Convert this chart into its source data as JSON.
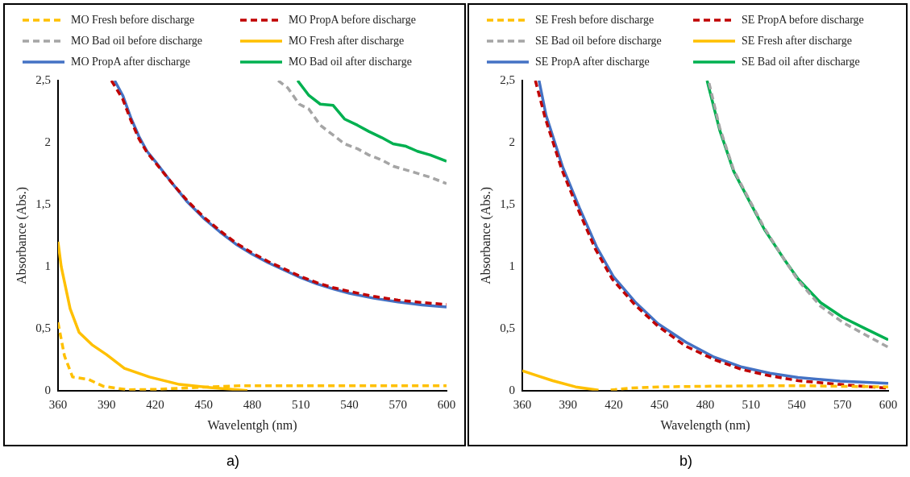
{
  "chart_data": [
    {
      "type": "line",
      "xlabel": "Wavelentgh (nm)",
      "ylabel": "Absorbance (Abs.)",
      "annotations": [
        "a)"
      ],
      "xlim": [
        360,
        600
      ],
      "xticks": [
        360,
        390,
        420,
        450,
        480,
        510,
        540,
        570,
        600
      ],
      "ylim": [
        0,
        2.5
      ],
      "yticks": [
        0,
        {
          "value": 0.5,
          "label": "0,5"
        },
        1,
        {
          "value": 1.5,
          "label": "1,5"
        },
        2,
        {
          "value": 2.5,
          "label": "2,5"
        }
      ],
      "legend": "top",
      "marker": "none",
      "series": [
        {
          "name": "MO Fresh before discharge",
          "color": "#ffc000",
          "line_style": "dashed",
          "x": [
            360,
            364,
            369,
            379,
            388,
            403,
            420,
            454,
            473,
            500,
            550,
            600
          ],
          "values": [
            0.55,
            0.28,
            0.11,
            0.09,
            0.035,
            0.007,
            0.01,
            0.03,
            0.04,
            0.04,
            0.04,
            0.04
          ]
        },
        {
          "name": "MO PropA before discharge",
          "color": "#c00000",
          "line_style": "dashed",
          "x": [
            393,
            400,
            405,
            410,
            415,
            420,
            430,
            440,
            450,
            460,
            470,
            480,
            490,
            500,
            510,
            520,
            530,
            540,
            555,
            570,
            585,
            600
          ],
          "values": [
            2.5,
            2.35,
            2.18,
            2.03,
            1.92,
            1.84,
            1.68,
            1.53,
            1.4,
            1.29,
            1.19,
            1.11,
            1.04,
            0.98,
            0.92,
            0.87,
            0.83,
            0.8,
            0.76,
            0.73,
            0.71,
            0.695
          ]
        },
        {
          "name": "MO Bad oil before discharge",
          "color": "#a5a5a5",
          "line_style": "dashed",
          "x": [
            496,
            502,
            509,
            515,
            522,
            530,
            537,
            545,
            552,
            560,
            567,
            580,
            590,
            600
          ],
          "values": [
            2.5,
            2.44,
            2.31,
            2.27,
            2.14,
            2.06,
            1.99,
            1.95,
            1.9,
            1.86,
            1.81,
            1.76,
            1.72,
            1.67
          ]
        },
        {
          "name": "MO Fresh after discharge",
          "color": "#ffc000",
          "line_style": "solid",
          "x": [
            360,
            362,
            367.5,
            373,
            381,
            390,
            401,
            416.5,
            435,
            454,
            477
          ],
          "values": [
            1.2,
            1.0,
            0.66,
            0.47,
            0.37,
            0.29,
            0.18,
            0.11,
            0.05,
            0.025,
            0
          ]
        },
        {
          "name": "MO PropA after discharge",
          "color": "#4472c4",
          "line_style": "solid",
          "x": [
            395,
            400,
            405,
            410,
            415,
            420,
            430,
            440,
            450,
            460,
            470,
            480,
            490,
            500,
            510,
            520,
            530,
            540,
            555,
            570,
            585,
            600
          ],
          "values": [
            2.5,
            2.38,
            2.2,
            2.05,
            1.93,
            1.85,
            1.68,
            1.52,
            1.39,
            1.28,
            1.18,
            1.1,
            1.03,
            0.97,
            0.91,
            0.86,
            0.82,
            0.785,
            0.745,
            0.715,
            0.69,
            0.675
          ]
        },
        {
          "name": "MO Bad oil after discharge",
          "color": "#00b050",
          "line_style": "solid",
          "x": [
            508,
            515,
            522,
            530,
            537,
            545,
            552,
            560,
            567,
            575,
            582,
            590,
            600
          ],
          "values": [
            2.5,
            2.38,
            2.31,
            2.3,
            2.19,
            2.14,
            2.09,
            2.04,
            1.99,
            1.97,
            1.93,
            1.9,
            1.85
          ]
        }
      ]
    },
    {
      "type": "line",
      "xlabel": "Wavelength (nm)",
      "ylabel": "Absorbance (Abs.)",
      "annotations": [
        "b)"
      ],
      "xlim": [
        360,
        600
      ],
      "xticks": [
        360,
        390,
        420,
        450,
        480,
        510,
        540,
        570,
        600
      ],
      "ylim": [
        0,
        2.5
      ],
      "yticks": [
        0,
        {
          "value": 0.5,
          "label": "0,5"
        },
        1,
        {
          "value": 1.5,
          "label": "1,5"
        },
        2,
        {
          "value": 2.5,
          "label": "2,5"
        }
      ],
      "legend": "top",
      "marker": "none",
      "series": [
        {
          "name": "SE Fresh before discharge",
          "color": "#ffc000",
          "line_style": "dashed",
          "x": [
            418,
            430,
            450,
            480,
            510,
            540,
            570,
            600
          ],
          "values": [
            0.005,
            0.02,
            0.03,
            0.035,
            0.038,
            0.04,
            0.035,
            0.03
          ]
        },
        {
          "name": "SE PropA before discharge",
          "color": "#c00000",
          "line_style": "dashed",
          "x": [
            368.6,
            375,
            386,
            397,
            408,
            419,
            434,
            449,
            467,
            486,
            504,
            522,
            541,
            568,
            600
          ],
          "values": [
            2.5,
            2.2,
            1.78,
            1.45,
            1.14,
            0.9,
            0.69,
            0.52,
            0.36,
            0.25,
            0.17,
            0.12,
            0.08,
            0.05,
            0.02
          ]
        },
        {
          "name": "SE Bad oil before discharge",
          "color": "#a5a5a5",
          "line_style": "dashed",
          "x": [
            482.5,
            489.5,
            498.6,
            509.7,
            518.8,
            531.7,
            540.9,
            555.6,
            570.2,
            585,
            600
          ],
          "values": [
            2.48,
            2.12,
            1.78,
            1.52,
            1.31,
            1.06,
            0.89,
            0.68,
            0.55,
            0.45,
            0.35
          ]
        },
        {
          "name": "SE Fresh after discharge",
          "color": "#ffc000",
          "line_style": "solid",
          "x": [
            360,
            370,
            380,
            395,
            410
          ],
          "values": [
            0.16,
            0.12,
            0.08,
            0.03,
            0.003
          ]
        },
        {
          "name": "SE PropA after discharge",
          "color": "#4472c4",
          "line_style": "solid",
          "x": [
            371,
            375.6,
            386.6,
            397.6,
            408.7,
            419.7,
            434.4,
            449,
            467.4,
            485.8,
            504,
            522.5,
            540.9,
            568.4,
            600
          ],
          "values": [
            2.5,
            2.22,
            1.8,
            1.47,
            1.16,
            0.92,
            0.71,
            0.54,
            0.39,
            0.27,
            0.19,
            0.14,
            0.106,
            0.076,
            0.059
          ]
        },
        {
          "name": "SE Bad oil after discharge",
          "color": "#00b050",
          "line_style": "solid",
          "x": [
            481.2,
            489.5,
            498.6,
            509.7,
            518.8,
            531.7,
            540.9,
            555.6,
            570.2,
            585,
            600
          ],
          "values": [
            2.5,
            2.1,
            1.77,
            1.51,
            1.3,
            1.06,
            0.9,
            0.71,
            0.59,
            0.5,
            0.41
          ]
        }
      ]
    }
  ]
}
